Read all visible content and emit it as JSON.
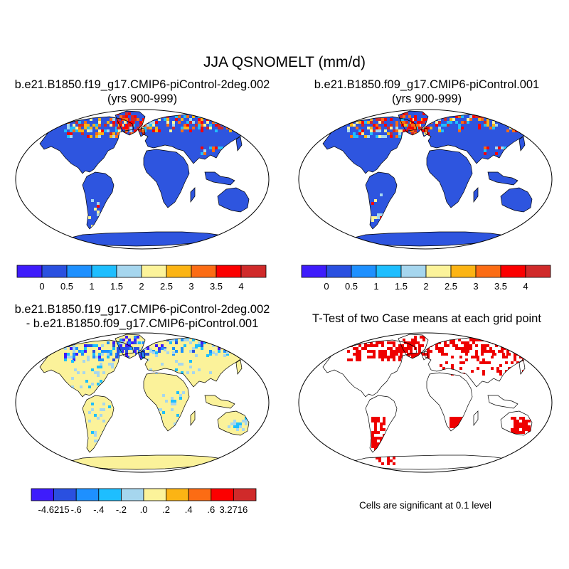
{
  "title": "JJA QSNOMELT (mm/d)",
  "panels": [
    {
      "title_line1": "b.e21.B1850.f19_g17.CMIP6-piControl-2deg.002",
      "title_line2": "(yrs 900-999)",
      "field": "case"
    },
    {
      "title_line1": "b.e21.B1850.f09_g17.CMIP6-piControl.001",
      "title_line2": "(yrs 900-999)",
      "field": "case"
    },
    {
      "title_line1": "b.e21.B1850.f19_g17.CMIP6-piControl-2deg.002",
      "title_line2": "- b.e21.B1850.f09_g17.CMIP6-piControl.001",
      "field": "diff"
    },
    {
      "title_line1": "T-Test of two Case means at each grid point",
      "title_line2": "",
      "field": "ttest"
    }
  ],
  "colorbars": {
    "case": {
      "labels": [
        "0",
        "0.5",
        "1",
        "1.5",
        "2",
        "2.5",
        "3",
        "3.5",
        "4"
      ],
      "colors": [
        "#3e1cfc",
        "#2a50e0",
        "#1e90ff",
        "#1ebeff",
        "#a6d6ee",
        "#fcf39a",
        "#fcb414",
        "#fc6c14",
        "#fc0000",
        "#d02a2a"
      ]
    },
    "diff": {
      "labels": [
        "-4.6215",
        "-.6",
        "-.4",
        "-.2",
        ".0",
        ".2",
        ".4",
        ".6",
        "3.2716"
      ],
      "colors": [
        "#3e1cfc",
        "#2a50e0",
        "#1e90ff",
        "#1ebeff",
        "#a6d6ee",
        "#fcf39a",
        "#fcb414",
        "#fc6c14",
        "#fc0000",
        "#d02a2a"
      ]
    }
  },
  "ttest_note": "Cells are significant at 0.1 level",
  "colors": {
    "land_case": "#2e55df",
    "land_diff": "#fbf29a",
    "significant": "#ee0000",
    "coast": "#000000"
  }
}
